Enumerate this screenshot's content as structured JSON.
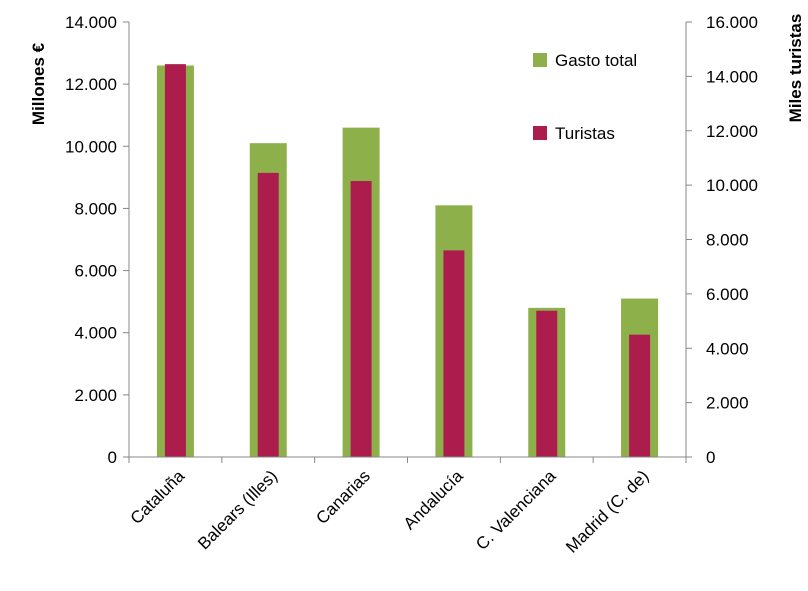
{
  "chart_data": {
    "type": "bar",
    "categories": [
      "Cataluña",
      "Balears (Illes)",
      "Canarias",
      "Andalucía",
      "C. Valenciana",
      "Madrid (C. de)"
    ],
    "series": [
      {
        "name": "Gasto total",
        "axis": "left",
        "color": "#8db04a",
        "values": [
          12600,
          10100,
          10600,
          8100,
          4800,
          5100
        ]
      },
      {
        "name": "Turistas",
        "axis": "right",
        "color": "#ac1d4e",
        "values": [
          14450,
          10450,
          10150,
          7600,
          5380,
          4500
        ]
      }
    ],
    "ylabel": "Millones €",
    "y2label": "Miles turistas",
    "ylim": [
      0,
      14000
    ],
    "y2lim": [
      0,
      16000
    ],
    "yticks": [
      "0",
      "2.000",
      "4.000",
      "6.000",
      "8.000",
      "10.000",
      "12.000",
      "14.000"
    ],
    "y2ticks": [
      "0",
      "2.000",
      "4.000",
      "6.000",
      "8.000",
      "10.000",
      "12.000",
      "14.000",
      "16.000"
    ],
    "legend_position": "top-right",
    "grid": false
  }
}
